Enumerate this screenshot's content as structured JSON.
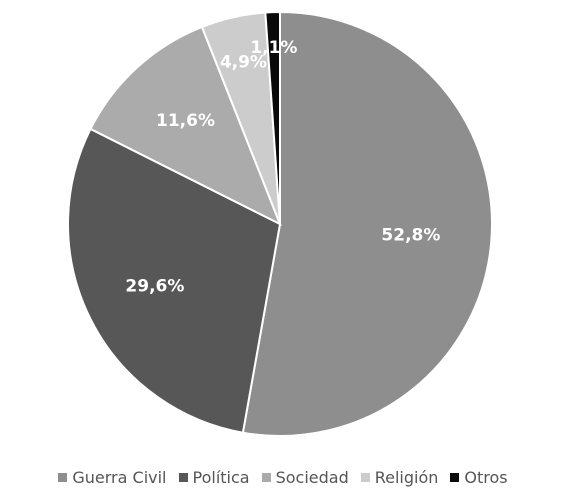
{
  "chart_data": {
    "type": "pie",
    "title": "",
    "start_angle_deg": 0,
    "direction": "clockwise",
    "slices": [
      {
        "label": "Guerra Civil",
        "value": 52.8,
        "display": "52,8%",
        "color": "#8e8e8e"
      },
      {
        "label": "Política",
        "value": 29.6,
        "display": "29,6%",
        "color": "#575757"
      },
      {
        "label": "Sociedad",
        "value": 11.6,
        "display": "11,6%",
        "color": "#ababab"
      },
      {
        "label": "Religión",
        "value": 4.9,
        "display": "4,9%",
        "color": "#cccccc"
      },
      {
        "label": "Otros",
        "value": 1.1,
        "display": "1,1%",
        "color": "#0a0a0a"
      }
    ],
    "legend_position": "bottom",
    "slice_border_color": "#ffffff"
  }
}
